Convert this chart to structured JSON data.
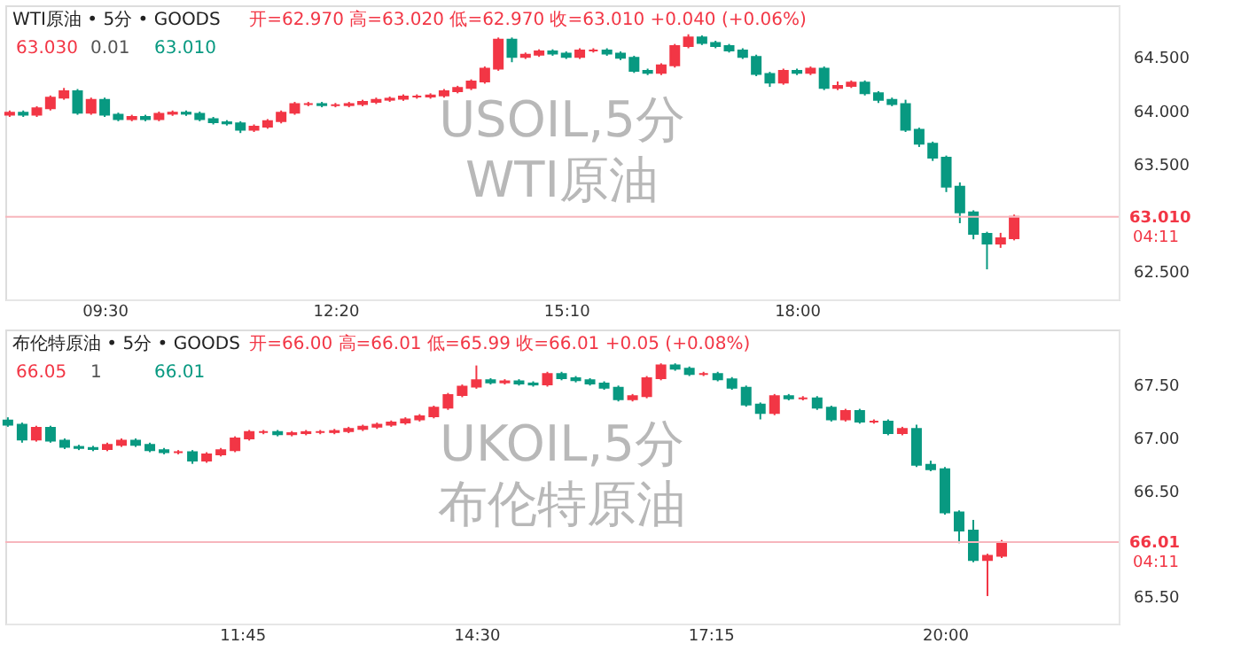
{
  "chart_data": [
    {
      "type": "candlestick",
      "title": "WTI原油 • 5分 • GOODS",
      "subtitle": "开=62.970 高=63.020 低=62.970 收=63.010 +0.040 (+0.06%)",
      "x": [
        8.3333,
        8.5,
        8.6667,
        8.8333,
        9,
        9.1667,
        9.3333,
        9.5,
        9.6667,
        9.8333,
        10,
        10.1667,
        10.3333,
        10.5,
        10.6667,
        10.8333,
        11,
        11.1667,
        11.3333,
        11.5,
        11.6667,
        11.8333,
        12,
        12.1667,
        12.3333,
        12.5,
        12.6667,
        12.8333,
        13,
        13.1667,
        13.3333,
        13.5,
        13.6667,
        13.8333,
        14,
        14.1667,
        14.3333,
        14.5,
        14.6667,
        14.8333,
        15,
        15.1667,
        15.3333,
        15.5,
        15.6667,
        15.8333,
        16,
        16.1667,
        16.3333,
        16.5,
        16.6667,
        16.8333,
        17,
        17.1667,
        17.3333,
        17.5,
        17.6667,
        17.8333,
        18,
        18.1667,
        18.3333,
        18.5,
        18.6667,
        18.8333,
        19,
        19.1667,
        19.3333,
        19.5,
        19.6667,
        19.8333,
        20,
        20.1667,
        20.3333,
        20.5,
        20.6667
      ],
      "ohlc": [
        [
          63.96,
          64.0,
          63.94,
          63.98
        ],
        [
          63.98,
          64.0,
          63.94,
          63.96
        ],
        [
          63.96,
          64.04,
          63.94,
          64.02
        ],
        [
          64.02,
          64.14,
          64.0,
          64.12
        ],
        [
          64.12,
          64.21,
          64.1,
          64.18
        ],
        [
          64.18,
          64.2,
          63.96,
          63.98
        ],
        [
          63.98,
          64.12,
          63.96,
          64.1
        ],
        [
          64.1,
          64.12,
          63.94,
          63.96
        ],
        [
          63.96,
          63.98,
          63.9,
          63.92
        ],
        [
          63.92,
          63.96,
          63.9,
          63.94
        ],
        [
          63.94,
          63.96,
          63.9,
          63.92
        ],
        [
          63.92,
          63.99,
          63.9,
          63.97
        ],
        [
          63.97,
          64.0,
          63.95,
          63.98
        ],
        [
          63.98,
          64.0,
          63.95,
          63.97
        ],
        [
          63.97,
          63.99,
          63.9,
          63.92
        ],
        [
          63.92,
          63.94,
          63.87,
          63.89
        ],
        [
          63.89,
          63.91,
          63.86,
          63.88
        ],
        [
          63.88,
          63.9,
          63.79,
          63.82
        ],
        [
          63.82,
          63.87,
          63.8,
          63.85
        ],
        [
          63.85,
          63.92,
          63.83,
          63.9
        ],
        [
          63.9,
          64.0,
          63.88,
          63.98
        ],
        [
          63.98,
          64.08,
          63.96,
          64.06
        ],
        [
          64.06,
          64.08,
          64.04,
          64.06
        ],
        [
          64.06,
          64.08,
          64.03,
          64.05
        ],
        [
          64.05,
          64.07,
          64.03,
          64.05
        ],
        [
          64.05,
          64.08,
          64.03,
          64.06
        ],
        [
          64.06,
          64.1,
          64.04,
          64.08
        ],
        [
          64.08,
          64.12,
          64.06,
          64.1
        ],
        [
          64.1,
          64.13,
          64.08,
          64.11
        ],
        [
          64.11,
          64.15,
          64.09,
          64.13
        ],
        [
          64.13,
          64.15,
          64.11,
          64.13
        ],
        [
          64.13,
          64.16,
          64.11,
          64.14
        ],
        [
          64.14,
          64.2,
          64.12,
          64.18
        ],
        [
          64.18,
          64.23,
          64.16,
          64.21
        ],
        [
          64.21,
          64.29,
          64.19,
          64.27
        ],
        [
          64.27,
          64.41,
          64.25,
          64.39
        ],
        [
          64.39,
          64.68,
          64.37,
          64.66
        ],
        [
          64.66,
          64.68,
          64.45,
          64.5
        ],
        [
          64.5,
          64.54,
          64.48,
          64.52
        ],
        [
          64.52,
          64.57,
          64.5,
          64.55
        ],
        [
          64.55,
          64.57,
          64.51,
          64.53
        ],
        [
          64.53,
          64.55,
          64.48,
          64.5
        ],
        [
          64.5,
          64.58,
          64.48,
          64.56
        ],
        [
          64.56,
          64.58,
          64.54,
          64.56
        ],
        [
          64.56,
          64.58,
          64.51,
          64.53
        ],
        [
          64.53,
          64.55,
          64.47,
          64.49
        ],
        [
          64.49,
          64.51,
          64.35,
          64.37
        ],
        [
          64.37,
          64.39,
          64.33,
          64.35
        ],
        [
          64.35,
          64.44,
          64.33,
          64.42
        ],
        [
          64.42,
          64.62,
          64.4,
          64.6
        ],
        [
          64.6,
          64.71,
          64.58,
          64.68
        ],
        [
          64.68,
          64.7,
          64.61,
          64.63
        ],
        [
          64.63,
          64.65,
          64.58,
          64.6
        ],
        [
          64.6,
          64.62,
          64.54,
          64.56
        ],
        [
          64.56,
          64.58,
          64.48,
          64.5
        ],
        [
          64.5,
          64.52,
          64.32,
          64.34
        ],
        [
          64.34,
          64.36,
          64.22,
          64.26
        ],
        [
          64.26,
          64.39,
          64.24,
          64.37
        ],
        [
          64.37,
          64.39,
          64.33,
          64.35
        ],
        [
          64.35,
          64.41,
          64.33,
          64.39
        ],
        [
          64.39,
          64.41,
          64.19,
          64.21
        ],
        [
          64.21,
          64.27,
          64.19,
          64.23
        ],
        [
          64.23,
          64.28,
          64.21,
          64.26
        ],
        [
          64.26,
          64.28,
          64.14,
          64.16
        ],
        [
          64.16,
          64.18,
          64.07,
          64.1
        ],
        [
          64.1,
          64.12,
          64.04,
          64.06
        ],
        [
          64.06,
          64.1,
          63.8,
          63.82
        ],
        [
          63.82,
          63.84,
          63.66,
          63.69
        ],
        [
          63.69,
          63.71,
          63.53,
          63.56
        ],
        [
          63.56,
          63.58,
          63.24,
          63.29
        ],
        [
          63.29,
          63.33,
          62.95,
          63.05
        ],
        [
          63.05,
          63.07,
          62.8,
          62.85
        ],
        [
          62.85,
          62.87,
          62.52,
          62.76
        ],
        [
          62.76,
          62.86,
          62.72,
          62.81
        ],
        [
          62.81,
          63.03,
          62.79,
          63.01
        ]
      ],
      "xlim": [
        8.28,
        21.95
      ],
      "ylim": [
        62.24,
        64.98
      ],
      "xticks": [
        {
          "value": 9.5,
          "label": "09:30"
        },
        {
          "value": 12.3333,
          "label": "12:20"
        },
        {
          "value": 15.1667,
          "label": "15:10"
        },
        {
          "value": 18,
          "label": "18:00"
        }
      ],
      "yticks": [
        {
          "value": 62.5,
          "label": "62.500"
        },
        {
          "value": 63.5,
          "label": "63.500"
        },
        {
          "value": 64,
          "label": "64.000"
        },
        {
          "value": 64.5,
          "label": "64.500"
        }
      ],
      "ref_lines": [
        {
          "axis": "y",
          "value": 63.01,
          "label": "63.010",
          "color": "#f7b6bd"
        }
      ],
      "annotations": [
        "63.030",
        "0.01",
        "63.010",
        "USOIL,5分",
        "WTI原油",
        "04:11"
      ],
      "grid": false
    },
    {
      "type": "candlestick",
      "title": "布伦特原油 • 5分 • GOODS",
      "subtitle": "开=66.00 高=66.01 低=65.99 收=66.01 +0.05 (+0.08%)",
      "x": [
        9,
        9.1667,
        9.3333,
        9.5,
        9.6667,
        9.8333,
        10,
        10.1667,
        10.3333,
        10.5,
        10.6667,
        10.8333,
        11,
        11.1667,
        11.3333,
        11.5,
        11.6667,
        11.8333,
        12,
        12.1667,
        12.3333,
        12.5,
        12.6667,
        12.8333,
        13,
        13.1667,
        13.3333,
        13.5,
        13.6667,
        13.8333,
        14,
        14.1667,
        14.3333,
        14.5,
        14.6667,
        14.8333,
        15,
        15.1667,
        15.3333,
        15.5,
        15.6667,
        15.8333,
        16,
        16.1667,
        16.3333,
        16.5,
        16.6667,
        16.8333,
        17,
        17.1667,
        17.3333,
        17.5,
        17.6667,
        17.8333,
        18,
        18.1667,
        18.3333,
        18.5,
        18.6667,
        18.8333,
        19,
        19.1667,
        19.3333,
        19.5,
        19.6667,
        19.8333,
        20,
        20.1667,
        20.3333,
        20.5,
        20.6667
      ],
      "ohlc": [
        [
          67.16,
          67.19,
          67.1,
          67.12
        ],
        [
          67.12,
          67.14,
          66.95,
          66.98
        ],
        [
          66.98,
          67.11,
          66.96,
          67.09
        ],
        [
          67.09,
          67.11,
          66.95,
          66.97
        ],
        [
          66.97,
          66.99,
          66.89,
          66.91
        ],
        [
          66.91,
          66.93,
          66.88,
          66.9
        ],
        [
          66.9,
          66.92,
          66.87,
          66.89
        ],
        [
          66.89,
          66.95,
          66.87,
          66.93
        ],
        [
          66.93,
          66.99,
          66.91,
          66.97
        ],
        [
          66.97,
          66.99,
          66.91,
          66.93
        ],
        [
          66.93,
          66.95,
          66.86,
          66.88
        ],
        [
          66.88,
          66.9,
          66.84,
          66.86
        ],
        [
          66.86,
          66.88,
          66.84,
          66.86
        ],
        [
          66.86,
          66.88,
          66.75,
          66.78
        ],
        [
          66.78,
          66.86,
          66.76,
          66.84
        ],
        [
          66.84,
          66.9,
          66.82,
          66.88
        ],
        [
          66.88,
          67.01,
          66.86,
          66.99
        ],
        [
          66.99,
          67.07,
          66.97,
          67.05
        ],
        [
          67.05,
          67.07,
          67.03,
          67.05
        ],
        [
          67.05,
          67.07,
          67.01,
          67.03
        ],
        [
          67.03,
          67.06,
          67.01,
          67.04
        ],
        [
          67.04,
          67.07,
          67.02,
          67.05
        ],
        [
          67.05,
          67.07,
          67.03,
          67.05
        ],
        [
          67.05,
          67.08,
          67.03,
          67.06
        ],
        [
          67.06,
          67.1,
          67.04,
          67.08
        ],
        [
          67.08,
          67.12,
          67.06,
          67.1
        ],
        [
          67.1,
          67.14,
          67.08,
          67.12
        ],
        [
          67.12,
          67.16,
          67.1,
          67.14
        ],
        [
          67.14,
          67.19,
          67.12,
          67.17
        ],
        [
          67.17,
          67.22,
          67.15,
          67.2
        ],
        [
          67.2,
          67.3,
          67.18,
          67.28
        ],
        [
          67.28,
          67.42,
          67.26,
          67.4
        ],
        [
          67.4,
          67.5,
          67.38,
          67.48
        ],
        [
          67.48,
          67.68,
          67.46,
          67.54
        ],
        [
          67.54,
          67.56,
          67.5,
          67.52
        ],
        [
          67.52,
          67.55,
          67.5,
          67.53
        ],
        [
          67.53,
          67.55,
          67.49,
          67.51
        ],
        [
          67.51,
          67.53,
          67.48,
          67.5
        ],
        [
          67.5,
          67.62,
          67.48,
          67.6
        ],
        [
          67.6,
          67.62,
          67.54,
          67.56
        ],
        [
          67.56,
          67.58,
          67.52,
          67.54
        ],
        [
          67.54,
          67.56,
          67.49,
          67.51
        ],
        [
          67.51,
          67.53,
          67.45,
          67.47
        ],
        [
          67.47,
          67.49,
          67.34,
          67.36
        ],
        [
          67.36,
          67.41,
          67.34,
          67.39
        ],
        [
          67.39,
          67.58,
          67.37,
          67.56
        ],
        [
          67.56,
          67.7,
          67.54,
          67.68
        ],
        [
          67.68,
          67.7,
          67.63,
          67.65
        ],
        [
          67.65,
          67.67,
          67.58,
          67.6
        ],
        [
          67.6,
          67.62,
          67.58,
          67.6
        ],
        [
          67.6,
          67.62,
          67.53,
          67.55
        ],
        [
          67.55,
          67.57,
          67.45,
          67.47
        ],
        [
          67.47,
          67.49,
          67.29,
          67.31
        ],
        [
          67.31,
          67.33,
          67.17,
          67.23
        ],
        [
          67.23,
          67.41,
          67.21,
          67.39
        ],
        [
          67.39,
          67.41,
          67.35,
          67.37
        ],
        [
          67.37,
          67.39,
          67.35,
          67.37
        ],
        [
          67.37,
          67.39,
          67.26,
          67.28
        ],
        [
          67.28,
          67.3,
          67.15,
          67.17
        ],
        [
          67.17,
          67.27,
          67.15,
          67.25
        ],
        [
          67.25,
          67.27,
          67.13,
          67.15
        ],
        [
          67.15,
          67.17,
          67.13,
          67.15
        ],
        [
          67.15,
          67.17,
          67.02,
          67.04
        ],
        [
          67.04,
          67.1,
          67.02,
          67.08
        ],
        [
          67.08,
          67.12,
          66.72,
          66.74
        ],
        [
          66.74,
          66.78,
          66.68,
          66.7
        ],
        [
          66.7,
          66.72,
          66.27,
          66.29
        ],
        [
          66.29,
          66.31,
          66.0,
          66.12
        ],
        [
          66.12,
          66.22,
          65.82,
          65.84
        ],
        [
          65.84,
          65.9,
          65.5,
          65.88
        ],
        [
          65.88,
          66.03,
          65.86,
          66.01
        ]
      ],
      "xlim": [
        8.97,
        22.04
      ],
      "ylim": [
        65.24,
        68.02
      ],
      "xticks": [
        {
          "value": 11.75,
          "label": "11:45"
        },
        {
          "value": 14.5,
          "label": "14:30"
        },
        {
          "value": 17.25,
          "label": "17:15"
        },
        {
          "value": 20,
          "label": "20:00"
        }
      ],
      "yticks": [
        {
          "value": 65.5,
          "label": "65.50"
        },
        {
          "value": 66.5,
          "label": "66.50"
        },
        {
          "value": 67,
          "label": "67.00"
        },
        {
          "value": 67.5,
          "label": "67.50"
        }
      ],
      "ref_lines": [
        {
          "axis": "y",
          "value": 66.01,
          "label": "66.01",
          "color": "#f7b6bd"
        }
      ],
      "annotations": [
        "66.05",
        "1",
        "66.01",
        "UKOIL,5分",
        "布伦特原油",
        "04:11"
      ],
      "grid": false
    }
  ]
}
